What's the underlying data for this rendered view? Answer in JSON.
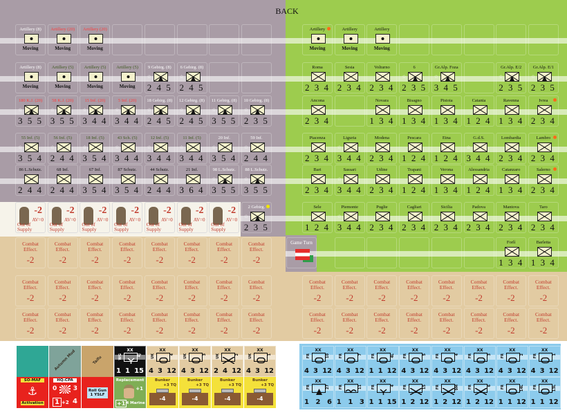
{
  "title": "BACK",
  "colors": {
    "austria_bg": "#a99ca6",
    "italy_bg": "#9dcc4e",
    "combat_bg": "#e2cba2",
    "blue_bg": "#8ccbec"
  },
  "left_rows": [
    [
      {
        "label": "Artillery (8)",
        "lc": "#ffffff",
        "type": "art",
        "note": "Moving"
      },
      {
        "label": "Artillery (20)",
        "lc": "#ff3b3b",
        "type": "art",
        "note": "Moving"
      },
      {
        "label": "Artillery (20)",
        "lc": "#ff3b3b",
        "type": "art",
        "note": "Moving"
      },
      {
        "type": "empty"
      },
      {
        "type": "empty"
      },
      {
        "type": "empty"
      },
      {
        "type": "empty"
      },
      {
        "type": "empty"
      }
    ],
    [
      {
        "label": "Artillery (8)",
        "lc": "#ffffff",
        "type": "art",
        "note": "Moving"
      },
      {
        "label": "Artillery (5)",
        "lc": "#3d5a1e",
        "type": "art",
        "note": "Moving"
      },
      {
        "label": "Artillery (5)",
        "lc": "#3d5a1e",
        "type": "art",
        "note": "Moving"
      },
      {
        "label": "Artillery (5)",
        "lc": "#3d5a1e",
        "type": "art",
        "note": "Moving"
      },
      {
        "label": "9 Gebirg. (8)",
        "lc": "#ffffff",
        "type": "mtn",
        "vals": "2 4 5"
      },
      {
        "label": "6 Gebirg. (8)",
        "lc": "#ffffff",
        "type": "mtn",
        "vals": "2 4 5"
      },
      {
        "type": "empty"
      },
      {
        "type": "empty"
      }
    ],
    [
      {
        "label": "180 K.J. (20)",
        "lc": "#ff3b3b",
        "type": "mtn",
        "vals": "3 5 5"
      },
      {
        "label": "58 K.J. (20)",
        "lc": "#ff3b3b",
        "type": "mtn",
        "vals": "3 5 5"
      },
      {
        "label": "15 Inf. (20)",
        "lc": "#ff3b3b",
        "type": "mtn",
        "vals": "3 4 4"
      },
      {
        "label": "5 Inf. (20)",
        "lc": "#ff3b3b",
        "type": "mtn",
        "vals": "3 4 4"
      },
      {
        "label": "18 Gebirg. (8)",
        "lc": "#ffffff",
        "type": "mtn",
        "vals": "2 4 5"
      },
      {
        "label": "12 Gebirg. (8)",
        "lc": "#ffffff",
        "type": "mtn",
        "vals": "2 4 5"
      },
      {
        "label": "11 Gebirg. (8)",
        "lc": "#ffffff",
        "type": "mtn",
        "vals": "3 5 5"
      },
      {
        "label": "10 Gebirg. (8)",
        "lc": "#ffffff",
        "type": "mtn",
        "vals": "2 3 5"
      }
    ],
    [
      {
        "label": "55 Inf. (5)",
        "lc": "#3d5a1e",
        "type": "inf",
        "vals": "3 5 4"
      },
      {
        "label": "56 Inf. (5)",
        "lc": "#3d5a1e",
        "type": "inf",
        "vals": "2 4 4"
      },
      {
        "label": "18 Inf. (5)",
        "lc": "#3d5a1e",
        "type": "inf",
        "vals": "3 5 4"
      },
      {
        "label": "43 Sch. (5)",
        "lc": "#3d5a1e",
        "type": "inf",
        "vals": "3 4 4"
      },
      {
        "label": "12 Inf. (5)",
        "lc": "#3d5a1e",
        "type": "inf",
        "vals": "3 4 4"
      },
      {
        "label": "11 Inf. (5)",
        "lc": "#3d5a1e",
        "type": "inf",
        "vals": "3 4 4"
      },
      {
        "label": "20 Inf.",
        "lc": "#ffffff",
        "type": "inf",
        "vals": "3 5 4"
      },
      {
        "label": "59 Inf.",
        "lc": "#ffffff",
        "type": "inf",
        "vals": "2 4 4"
      }
    ],
    [
      {
        "label": "86 L.Schutz.",
        "lc": "#111111",
        "type": "inf",
        "vals": "2 4 4"
      },
      {
        "label": "68 Inf.",
        "lc": "#111111",
        "type": "inf",
        "vals": "2 4 4"
      },
      {
        "label": "67 Inf.",
        "lc": "#111111",
        "type": "inf",
        "vals": "3 5 4"
      },
      {
        "label": "87 Schutz.",
        "lc": "#111111",
        "type": "inf",
        "vals": "3 5 4"
      },
      {
        "label": "44 Schutz.",
        "lc": "#111111",
        "type": "inf",
        "vals": "2 4 4"
      },
      {
        "label": "21 Inf.",
        "lc": "#111111",
        "type": "inf",
        "vals": "3 6 4"
      },
      {
        "label": "98 L.Schutz.",
        "lc": "#ffffff",
        "type": "mtn",
        "vals": "3 5 5"
      },
      {
        "label": "88 L.Schutz.",
        "lc": "#ffffff",
        "type": "mtn",
        "vals": "3 5 5"
      }
    ],
    [
      {
        "type": "oos",
        "mod": "-2",
        "av": "AV=0",
        "text": "Out of Supply"
      },
      {
        "type": "oos",
        "mod": "-2",
        "av": "AV=0",
        "text": "Out of Supply"
      },
      {
        "type": "oos",
        "mod": "-2",
        "av": "AV=0",
        "text": "Out of Supply"
      },
      {
        "type": "oos",
        "mod": "-2",
        "av": "AV=0",
        "text": "Out of Supply"
      },
      {
        "type": "oos",
        "mod": "-2",
        "av": "AV=0",
        "text": "Out of Supply"
      },
      {
        "type": "oos",
        "mod": "-2",
        "av": "AV=0",
        "text": "Out of Supply"
      },
      {
        "type": "oos",
        "mod": "-2",
        "av": "AV=0",
        "text": "Out of Supply"
      },
      {
        "label": "2 Gebirg.",
        "lc": "#ffffff",
        "type": "mtn",
        "vals": "2 3 5",
        "dot": "#f2e600"
      }
    ]
  ],
  "right_rows": [
    [
      {
        "label": "Artillery",
        "lc": "#111111",
        "type": "art",
        "note": "Moving",
        "dot": "#ff6a1a"
      },
      {
        "label": "Artillery",
        "lc": "#111111",
        "type": "art",
        "note": "Moving"
      },
      {
        "label": "Artillery",
        "lc": "#111111",
        "type": "art",
        "note": "Moving"
      },
      {
        "type": "empty"
      },
      {
        "type": "empty"
      },
      {
        "type": "empty"
      },
      {
        "type": "empty"
      },
      {
        "type": "empty"
      }
    ],
    [
      {
        "label": "Roma",
        "type": "inf",
        "vals": "2 3 4"
      },
      {
        "label": "Sesia",
        "type": "inf",
        "vals": "2 3 4"
      },
      {
        "label": "Volturno",
        "type": "inf",
        "vals": "2 3 4"
      },
      {
        "label": "6",
        "type": "mtn",
        "vals": "2 3 5"
      },
      {
        "label": "Gr.Alp. Foza",
        "type": "mtn",
        "vals": "3 4 5"
      },
      {
        "type": "empty"
      },
      {
        "label": "Gr.Alp. E/2",
        "type": "mtn",
        "vals": "2 3 5"
      },
      {
        "label": "Gr.Alp. E/1",
        "type": "mtn",
        "vals": "2 3 5"
      }
    ],
    [
      {
        "label": "Ancona",
        "type": "inf",
        "vals": "2 3 4"
      },
      {
        "type": "empty"
      },
      {
        "label": "Novara",
        "type": "inf",
        "vals": "1 3 4"
      },
      {
        "label": "Bisagno",
        "type": "inf",
        "vals": "1 3 4"
      },
      {
        "label": "Pistoia",
        "type": "inf",
        "vals": "1 3 4"
      },
      {
        "label": "Catania",
        "type": "inf",
        "vals": "1 2 4"
      },
      {
        "label": "Ravenna",
        "type": "inf",
        "vals": "1 3 4"
      },
      {
        "label": "Ivrea",
        "type": "inf",
        "vals": "2 3 4",
        "dot": "#ff6a1a"
      }
    ],
    [
      {
        "label": "Piacenza",
        "type": "inf",
        "vals": "2 3 4"
      },
      {
        "label": "Liguria",
        "type": "inf",
        "vals": "3 4 4",
        "star": true
      },
      {
        "label": "Modena",
        "type": "inf",
        "vals": "2 3 4"
      },
      {
        "label": "Pescara",
        "type": "inf",
        "vals": "1 2 4"
      },
      {
        "label": "Etna",
        "type": "inf",
        "vals": "1 2 4"
      },
      {
        "label": "G.d.S.",
        "type": "inf",
        "vals": "3 4 4",
        "star": true
      },
      {
        "label": "Lombardia",
        "type": "inf",
        "vals": "2 3 4"
      },
      {
        "label": "Lambro",
        "type": "inf",
        "vals": "2 3 4",
        "dot": "#ff6a1a"
      }
    ],
    [
      {
        "label": "Bari",
        "type": "inf",
        "vals": "2 3 4"
      },
      {
        "label": "Sassari",
        "type": "inf",
        "vals": "3 4 4",
        "star": true
      },
      {
        "label": "Udine",
        "type": "inf",
        "vals": "2 3 4"
      },
      {
        "label": "Trapani",
        "type": "inf",
        "vals": "1 2 4"
      },
      {
        "label": "Verona",
        "type": "inf",
        "vals": "1 3 4"
      },
      {
        "label": "Alessandria",
        "type": "inf",
        "vals": "1 2 4"
      },
      {
        "label": "Catanzaro",
        "type": "inf",
        "vals": "1 3 4"
      },
      {
        "label": "Salerno",
        "type": "inf",
        "vals": "2 3 4",
        "dot": "#ff6a1a"
      }
    ],
    [
      {
        "label": "Sele",
        "type": "inf",
        "vals": "1 2 4"
      },
      {
        "label": "Piemonte",
        "type": "inf",
        "vals": "3 4 4",
        "star": true
      },
      {
        "label": "Puglie",
        "type": "inf",
        "vals": "2 3 4"
      },
      {
        "label": "Cagliari",
        "type": "inf",
        "vals": "2 3 4"
      },
      {
        "label": "Sicilia",
        "type": "inf",
        "vals": "2 3 4"
      },
      {
        "label": "Padova",
        "type": "inf",
        "vals": "2 3 4"
      },
      {
        "label": "Mantova",
        "type": "inf",
        "vals": "2 3 4"
      },
      {
        "label": "Taro",
        "type": "inf",
        "vals": "2 3 4"
      }
    ],
    [
      {
        "label": "Game Turn",
        "type": "turn"
      },
      {
        "type": "empty"
      },
      {
        "type": "empty"
      },
      {
        "type": "empty"
      },
      {
        "type": "empty"
      },
      {
        "type": "empty"
      },
      {
        "label": "Forlì",
        "type": "inf",
        "vals": "1 3 4"
      },
      {
        "label": "Barletta",
        "type": "inf",
        "vals": "1 3 4"
      }
    ]
  ],
  "combat_effect": {
    "text": "Combat Effect.",
    "value": "-2"
  },
  "bottom_left_top": [
    {
      "type": "plain",
      "bg": "#2fa795",
      "text": ""
    },
    {
      "type": "plain",
      "bg": "#7fa39a",
      "text": "Autumn Mud"
    },
    {
      "type": "plain",
      "bg": "#c9a46b",
      "text": "Taifu"
    },
    {
      "type": "unit",
      "bg": "#111111",
      "fg": "#ffffff",
      "left": "WG",
      "right": "4J",
      "sym": "Y",
      "vals": [
        "1",
        "1",
        "15"
      ]
    },
    {
      "type": "unit",
      "bg": "#e2cba2",
      "fg": "#111111",
      "left": "UK",
      "right": "4",
      "sym": "O",
      "vals": [
        "4",
        "3",
        "12"
      ]
    },
    {
      "type": "unit",
      "bg": "#e2cba2",
      "fg": "#111111",
      "left": "UK",
      "right": "3",
      "sym": "O",
      "vals": [
        "4",
        "3",
        "12"
      ]
    },
    {
      "type": "unit",
      "bg": "#e2cba2",
      "fg": "#111111",
      "left": "UK",
      "right": "2",
      "sym": "X",
      "vals": [
        "2",
        "4",
        "12"
      ]
    },
    {
      "type": "unit",
      "bg": "#e2cba2",
      "fg": "#111111",
      "left": "UK",
      "right": "1",
      "sym": "O",
      "vals": [
        "4",
        "3",
        "12"
      ]
    }
  ],
  "bottom_left_bottom": [
    {
      "type": "somaf",
      "bg": "#e8221d",
      "top": "SO-MAF",
      "bottom": "Activation"
    },
    {
      "type": "hq",
      "bg": "#e8221d",
      "top": "HQ-CPA",
      "a": "0",
      "b": "3",
      "c": "1",
      "d": "+2",
      "e": "4"
    },
    {
      "type": "note",
      "bg": "#e8221d",
      "text": "Roll Gun 1 YSLF"
    },
    {
      "type": "repl",
      "bg": "#7fae55",
      "top": "Replacement",
      "plus": "+1",
      "mod": "+1",
      "sub": "4 Marine"
    },
    {
      "type": "bunker",
      "bg": "#f4e13a",
      "top": "Bunker",
      "tq": "+3 TQ",
      "v": "-4"
    },
    {
      "type": "bunker",
      "bg": "#f4e13a",
      "top": "Bunker",
      "tq": "+3 TQ",
      "v": "-4"
    },
    {
      "type": "bunker",
      "bg": "#f4e13a",
      "top": "Bunker",
      "tq": "+3 TQ",
      "v": "-4"
    },
    {
      "type": "bunker",
      "bg": "#f4e13a",
      "top": "Bunker",
      "tq": "+3 TQ",
      "v": "-4"
    }
  ],
  "bottom_right": [
    [
      {
        "left": "FR",
        "right": "10",
        "sym": "O",
        "vals": [
          "4",
          "3",
          "12"
        ]
      },
      {
        "left": "FR",
        "right": "7",
        "sym": "O",
        "vals": [
          "4",
          "3",
          "12"
        ]
      },
      {
        "left": "FR",
        "right": "4L",
        "sym": "O",
        "vals": [
          "1",
          "1",
          "12"
        ]
      },
      {
        "left": "FR",
        "right": "5",
        "sym": "O",
        "vals": [
          "4",
          "3",
          "12"
        ]
      },
      {
        "left": "FR",
        "right": "4",
        "sym": "O",
        "vals": [
          "4",
          "3",
          "12"
        ]
      },
      {
        "left": "FR",
        "right": "3",
        "sym": "O",
        "vals": [
          "4",
          "3",
          "12"
        ]
      },
      {
        "left": "FR",
        "right": "2",
        "sym": "O",
        "vals": [
          "4",
          "3",
          "12"
        ]
      },
      {
        "left": "FR",
        "right": "1",
        "sym": "O",
        "vals": [
          "4",
          "3",
          "12"
        ]
      }
    ],
    [
      {
        "left": "FR",
        "right": "27",
        "sym": "T",
        "vals": [
          "1",
          "2",
          "6"
        ]
      },
      {
        "left": "FR",
        "right": "11",
        "sym": "A",
        "vals": [
          "1",
          "1",
          "3"
        ]
      },
      {
        "left": "FR",
        "right": "4",
        "sym": "Y",
        "vals": [
          "1",
          "1",
          "15"
        ]
      },
      {
        "left": "FR",
        "right": "15",
        "sym": "X",
        "vals": [
          "1",
          "2",
          "12"
        ]
      },
      {
        "left": "FR",
        "right": "9M",
        "sym": "X",
        "vals": [
          "1",
          "2",
          "12"
        ]
      },
      {
        "left": "FR",
        "right": "6",
        "sym": "X",
        "vals": [
          "1",
          "2",
          "12"
        ]
      },
      {
        "left": "FR",
        "right": "14L",
        "sym": "O",
        "vals": [
          "1",
          "1",
          "12"
        ]
      },
      {
        "left": "FR",
        "right": "13L",
        "sym": "O",
        "vals": [
          "1",
          "1",
          "12"
        ]
      }
    ]
  ]
}
